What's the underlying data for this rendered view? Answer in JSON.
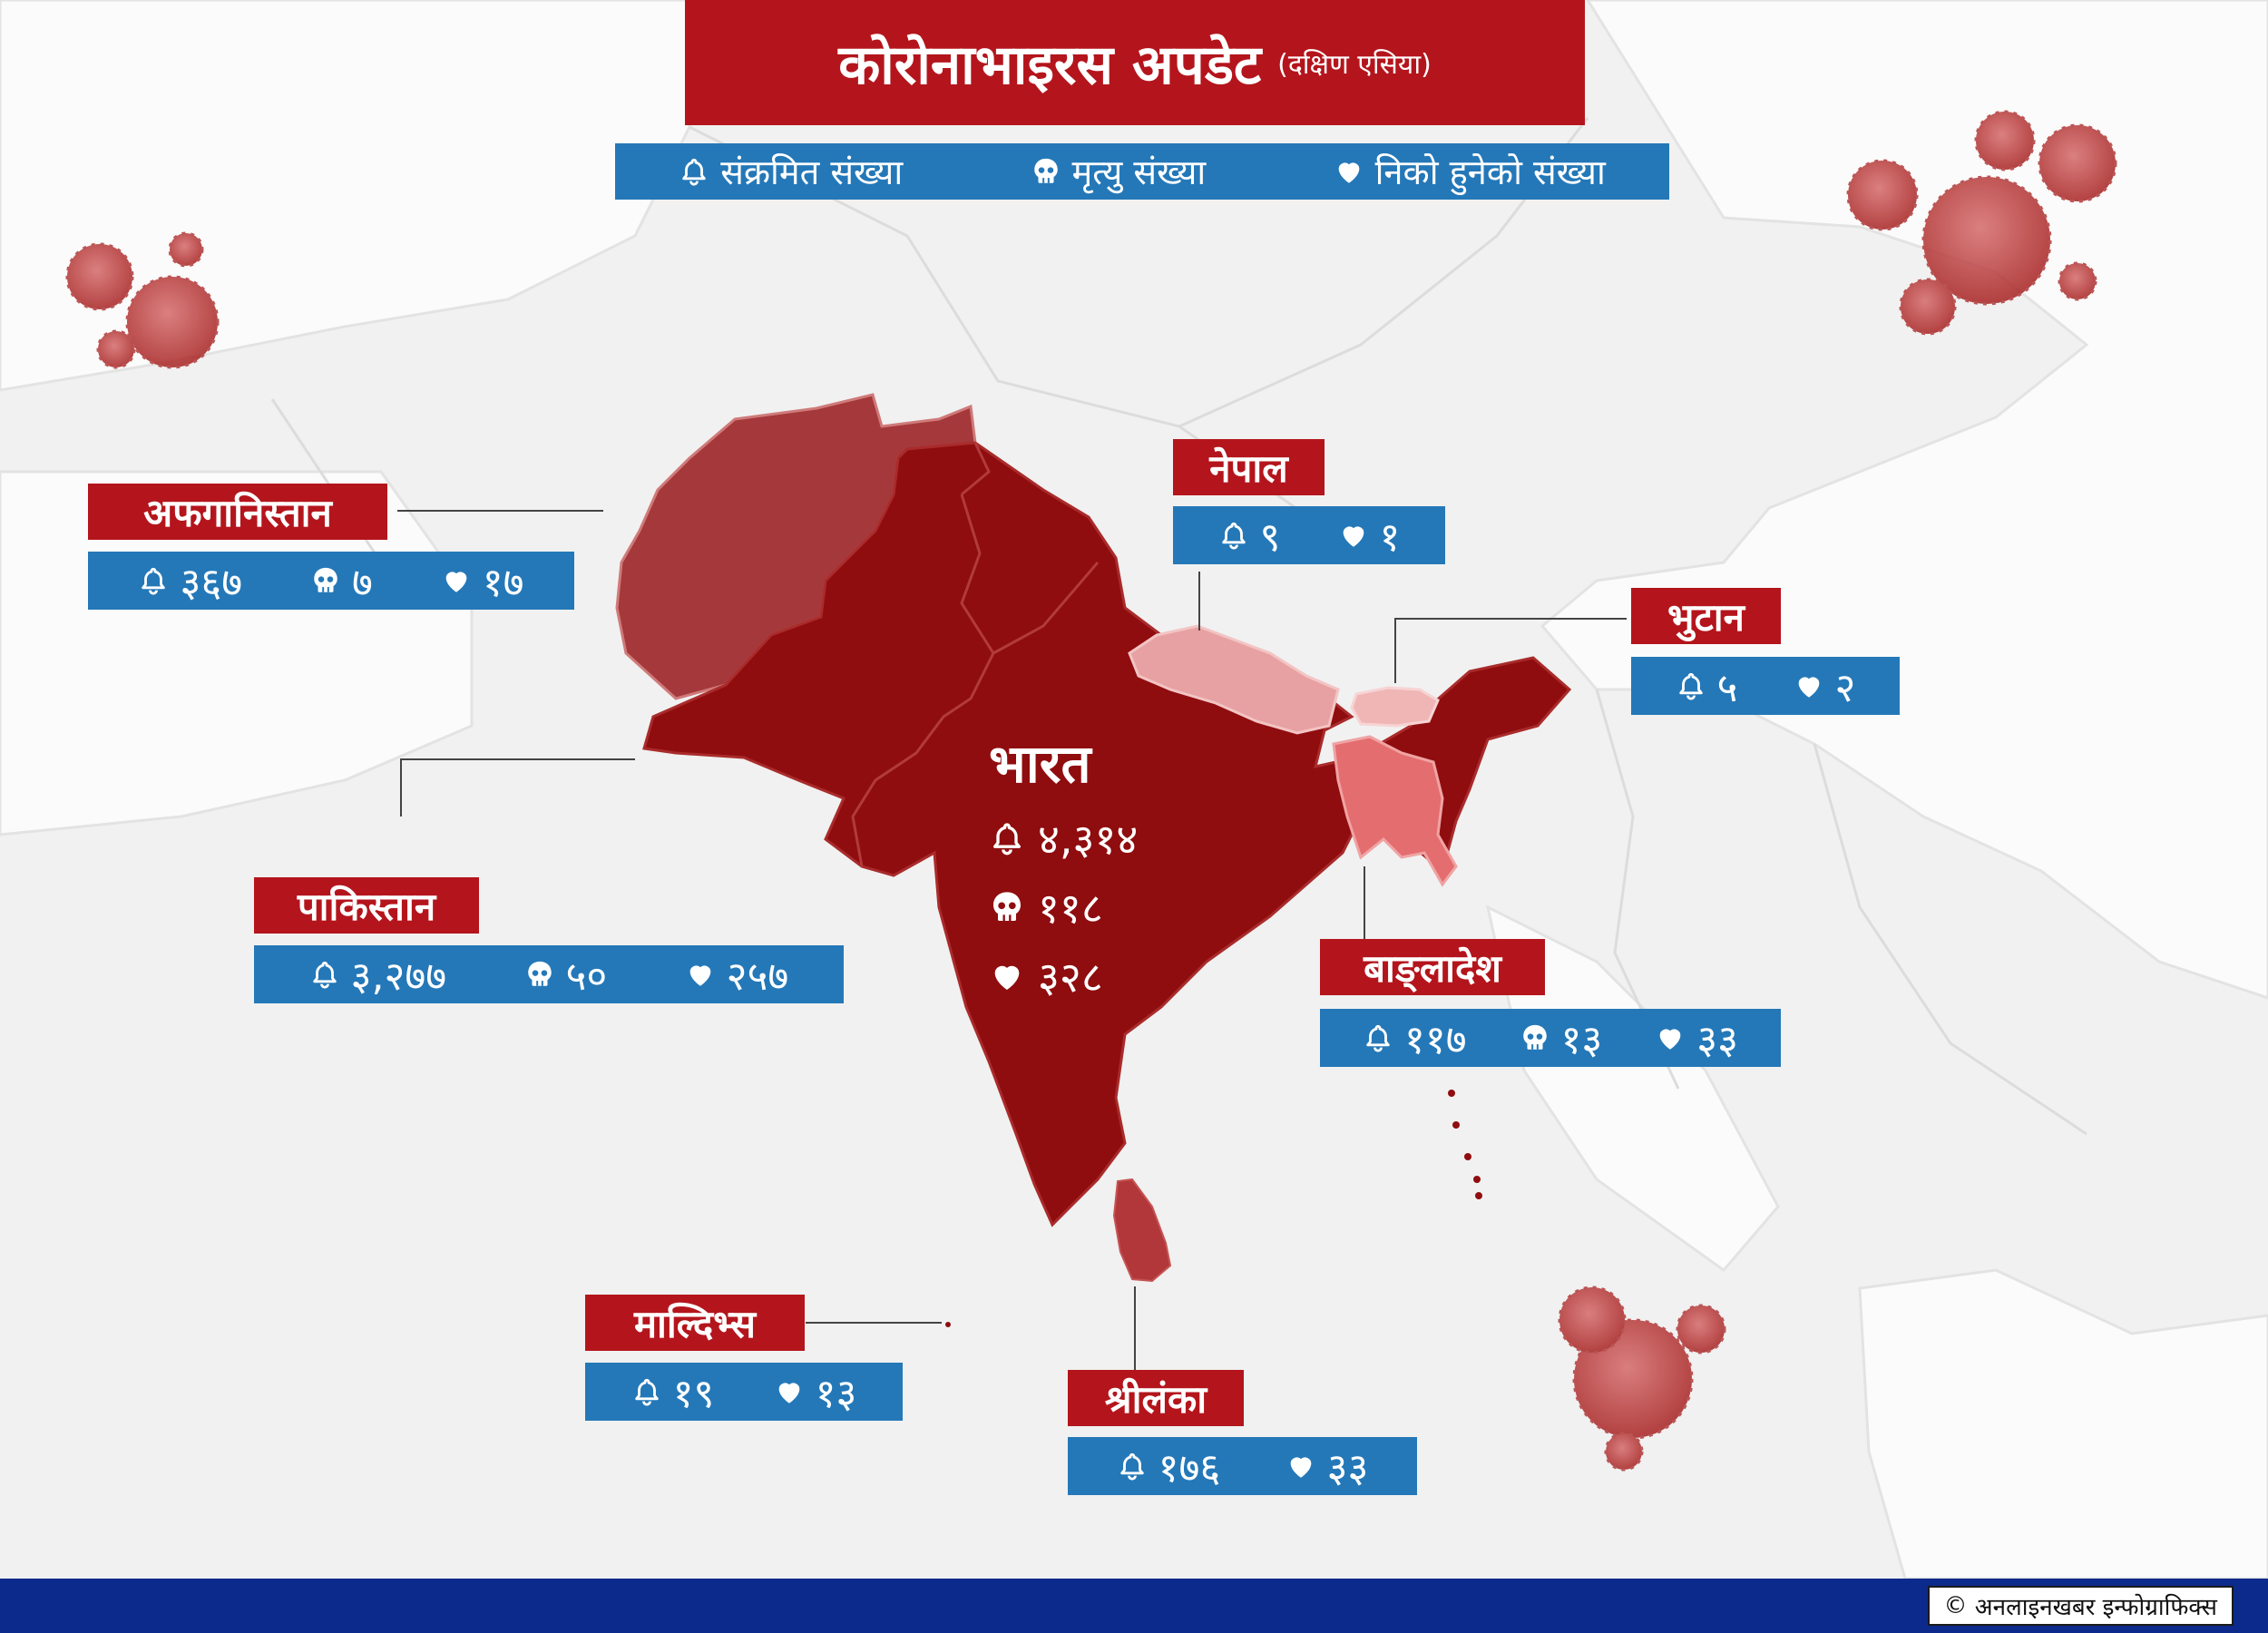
{
  "title": {
    "main": "कोरोनाभाइरस अपडेट",
    "sub": "(दक्षिण एसिया)"
  },
  "legend": {
    "infected": "संक्रमित संख्या",
    "deaths": "मृत्यु संख्या",
    "recovered": "निको हुनेको संख्या"
  },
  "colors": {
    "title_red": "#b4151c",
    "stat_blue": "#2478b8",
    "footer_navy": "#0c2a8c",
    "india": "#8f0d0f",
    "afghanistan": "#a5383a",
    "nepal": "#e8a1a2",
    "bhutan": "#f0b6b6",
    "bangladesh": "#e46d70",
    "sri_lanka": "#b2373a"
  },
  "icons": {
    "infected": "bell-icon",
    "deaths": "skull-icon",
    "recovered": "heart-icon"
  },
  "countries": {
    "afghanistan": {
      "name": "अफगानिस्तान",
      "infected": "३६७",
      "deaths": "७",
      "recovered": "१७"
    },
    "pakistan": {
      "name": "पाकिस्तान",
      "infected": "३,२७७",
      "deaths": "५०",
      "recovered": "२५७"
    },
    "nepal": {
      "name": "नेपाल",
      "infected": "९",
      "recovered": "१"
    },
    "bhutan": {
      "name": "भुटान",
      "infected": "५",
      "recovered": "२"
    },
    "india": {
      "name": "भारत",
      "infected": "४,३१४",
      "deaths": "११८",
      "recovered": "३२८"
    },
    "bangladesh": {
      "name": "बाङ्लादेश",
      "infected": "११७",
      "deaths": "१३",
      "recovered": "३३"
    },
    "maldives": {
      "name": "माल्दिभ्स",
      "infected": "१९",
      "recovered": "१३"
    },
    "sri_lanka": {
      "name": "श्रीलंका",
      "infected": "१७६",
      "recovered": "३३"
    }
  },
  "footer": {
    "credit": "अनलाइनखबर इन्फोग्राफिक्स"
  }
}
